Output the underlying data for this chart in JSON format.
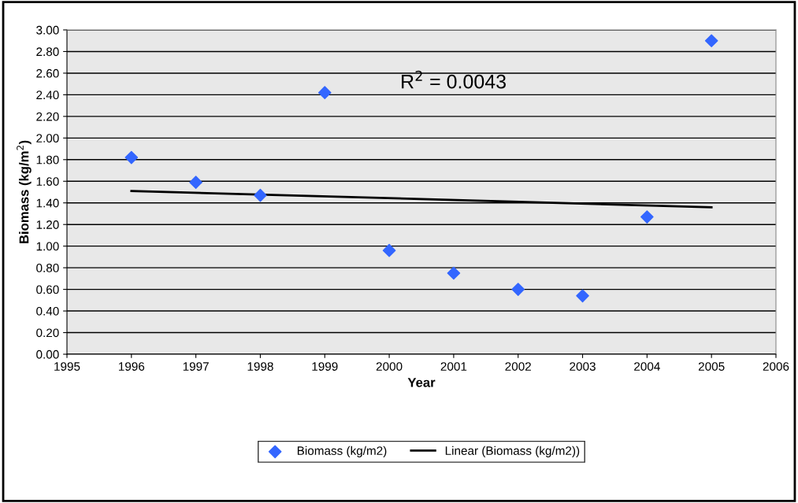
{
  "chart_data": {
    "type": "scatter",
    "xlabel": "Year",
    "ylabel": "Biomass (kg/m$^{2}$)",
    "xlim": [
      1995,
      2006
    ],
    "xticks": [
      1995,
      1996,
      1997,
      1998,
      1999,
      2000,
      2001,
      2002,
      2003,
      2004,
      2005,
      2006
    ],
    "ylim": [
      0,
      3
    ],
    "yticks": [
      {
        "value": 0,
        "label": "0.00"
      },
      {
        "value": 0.2,
        "label": "0.20"
      },
      {
        "value": 0.4,
        "label": "0.40"
      },
      {
        "value": 0.6,
        "label": "0.60"
      },
      {
        "value": 0.8,
        "label": "0.80"
      },
      {
        "value": 1.0,
        "label": "1.00"
      },
      {
        "value": 1.2,
        "label": "1.20"
      },
      {
        "value": 1.4,
        "label": "1.40"
      },
      {
        "value": 1.6,
        "label": "1.60"
      },
      {
        "value": 1.8,
        "label": "1.80"
      },
      {
        "value": 2.0,
        "label": "2.00"
      },
      {
        "value": 2.2,
        "label": "2.20"
      },
      {
        "value": 2.4,
        "label": "2.40"
      },
      {
        "value": 2.6,
        "label": "2.60"
      },
      {
        "value": 2.8,
        "label": "2.80"
      },
      {
        "value": 3.0,
        "label": "3.00"
      }
    ],
    "grid": "y",
    "legend": "bottom",
    "annotations": [
      "R$^{2}$ = 0.0043"
    ],
    "series": [
      {
        "name": "Biomass (kg/m2)",
        "marker": "diamond",
        "color": "#3366ff",
        "x": [
          1996,
          1997,
          1998,
          1999,
          2000,
          2001,
          2002,
          2003,
          2004,
          2005
        ],
        "values": [
          1.82,
          1.59,
          1.47,
          2.42,
          0.96,
          0.75,
          0.6,
          0.54,
          1.27,
          2.9
        ]
      },
      {
        "name": "Linear (Biomass (kg/m2))",
        "type": "line",
        "marker": "none",
        "color": "#000000",
        "line_style": "solid",
        "x": [
          1996,
          2005
        ],
        "values": [
          1.51,
          1.36
        ]
      }
    ]
  }
}
